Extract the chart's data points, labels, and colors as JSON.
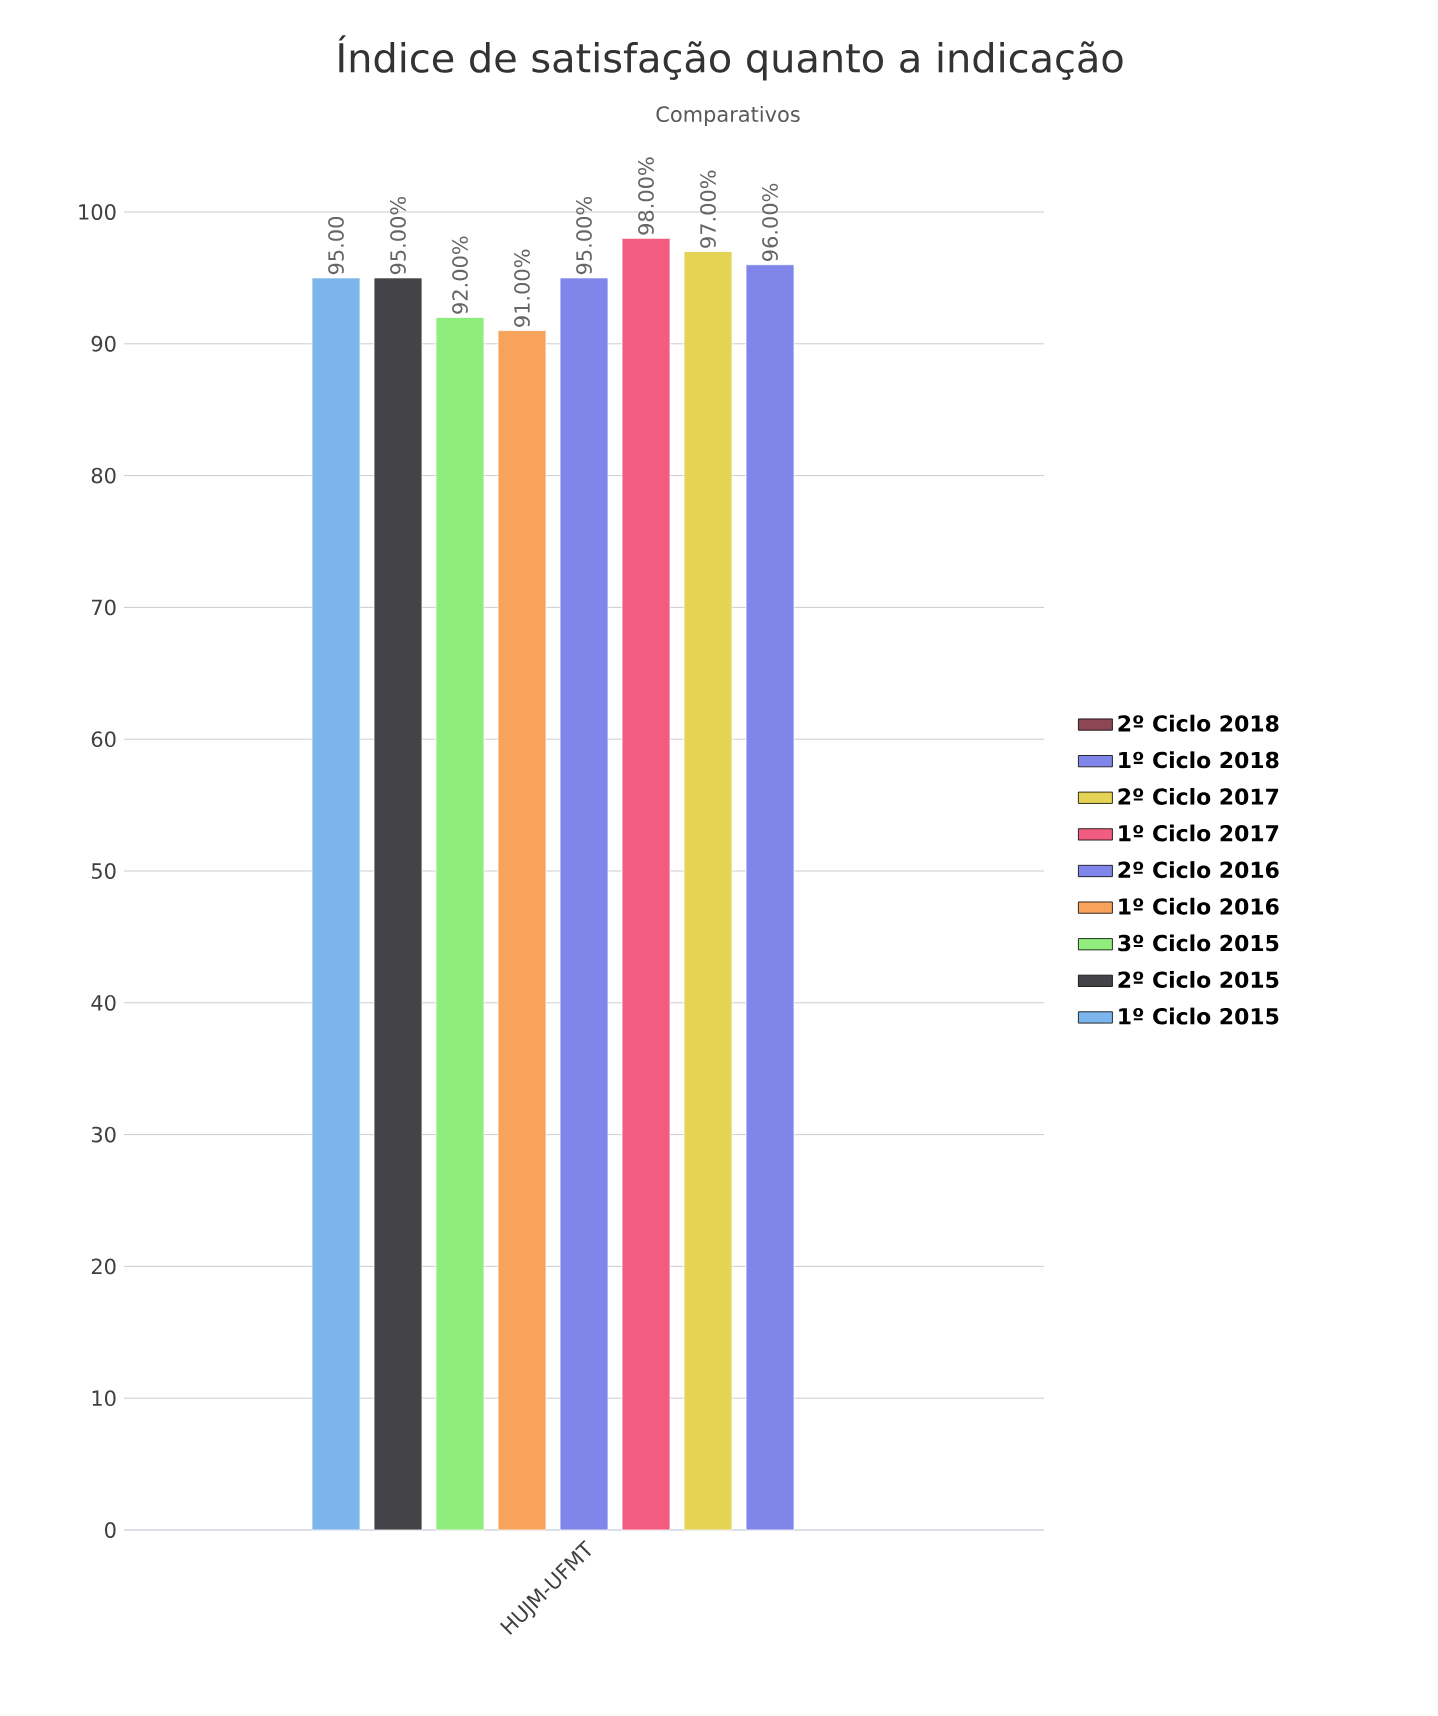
{
  "chart_data": {
    "type": "bar",
    "title": "Índice de satisfação quanto a indicação",
    "subtitle": "Comparativos",
    "categories": [
      "HUJM-UFMT"
    ],
    "series": [
      {
        "name": "1º Ciclo 2015",
        "color": "#7cb5ec",
        "values": [
          95
        ],
        "value_labels": [
          "95.00"
        ]
      },
      {
        "name": "2º Ciclo 2015",
        "color": "#434348",
        "values": [
          95
        ],
        "value_labels": [
          "95.00%"
        ]
      },
      {
        "name": "3º Ciclo 2015",
        "color": "#90ed7d",
        "values": [
          92
        ],
        "value_labels": [
          "92.00%"
        ]
      },
      {
        "name": "1º Ciclo 2016",
        "color": "#f7a35c",
        "values": [
          91
        ],
        "value_labels": [
          "91.00%"
        ]
      },
      {
        "name": "2º Ciclo 2016",
        "color": "#8085e9",
        "values": [
          95
        ],
        "value_labels": [
          "95.00%"
        ]
      },
      {
        "name": "1º Ciclo 2017",
        "color": "#f15c80",
        "values": [
          98
        ],
        "value_labels": [
          "98.00%"
        ]
      },
      {
        "name": "2º Ciclo 2017",
        "color": "#e4d354",
        "values": [
          97
        ],
        "value_labels": [
          "97.00%"
        ]
      },
      {
        "name": "1º Ciclo 2018",
        "color": "#8085e9",
        "values": [
          96
        ],
        "value_labels": [
          "96.00%"
        ]
      },
      {
        "name": "2º Ciclo 2018",
        "color": "#8d4653",
        "values": [
          null
        ],
        "value_labels": [
          null
        ]
      }
    ],
    "ylim": [
      0,
      100
    ],
    "yticks": [
      0,
      10,
      20,
      30,
      40,
      50,
      60,
      70,
      80,
      90,
      100
    ],
    "grid": "y",
    "legend": "right"
  }
}
